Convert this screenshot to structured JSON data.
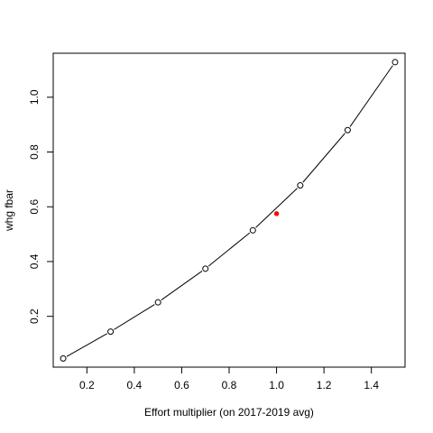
{
  "chart_data": {
    "type": "scatter",
    "title": "",
    "xlabel": "Effort multiplier (on 2017-2019 avg)",
    "ylabel": "whg fbar",
    "xlim": [
      0.058,
      1.542
    ],
    "ylim": [
      0.0144,
      1.1607
    ],
    "x_ticks": [
      0.2,
      0.4,
      0.6,
      0.8,
      1.0,
      1.2,
      1.4
    ],
    "x_tick_labels": [
      "0.2",
      "0.4",
      "0.6",
      "0.8",
      "1.0",
      "1.2",
      "1.4"
    ],
    "y_ticks": [
      0.2,
      0.4,
      0.6,
      0.8,
      1.0
    ],
    "y_tick_labels": [
      "0.2",
      "0.4",
      "0.6",
      "0.8",
      "1.0"
    ],
    "grid": false,
    "series": [
      {
        "style": "line-with-open-circles",
        "color": "#000000",
        "x": [
          0.1,
          0.3,
          0.5,
          0.7,
          0.9,
          1.1,
          1.3,
          1.5
        ],
        "y": [
          0.046,
          0.144,
          0.251,
          0.374,
          0.514,
          0.678,
          0.88,
          1.128
        ]
      },
      {
        "style": "filled-point",
        "color": "#ff0000",
        "x": [
          1.0
        ],
        "y": [
          0.575
        ]
      }
    ]
  }
}
